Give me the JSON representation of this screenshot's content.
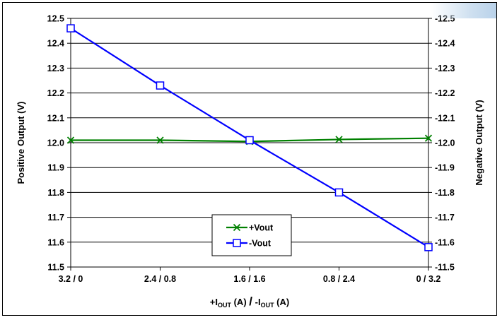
{
  "chart_data": {
    "type": "line",
    "categories": [
      "3.2 / 0",
      "2.4 / 0.8",
      "1.6 / 1.6",
      "0.8 / 2.4",
      "0 / 3.2"
    ],
    "series": [
      {
        "name": "+Vout",
        "axis": "left",
        "values": [
          12.01,
          12.01,
          12.005,
          12.013,
          12.018
        ],
        "color": "#008000",
        "marker": "x"
      },
      {
        "name": "-Vout",
        "axis": "right",
        "values": [
          -12.46,
          -12.23,
          -12.01,
          -11.8,
          -11.58
        ],
        "color": "#0000ff",
        "marker": "square"
      }
    ],
    "ylabel_left": "Positive Output (V)",
    "ylabel_right": "Negative Output (V)",
    "xlabel": {
      "main_1": "+I",
      "sub_1": "OUT",
      "unit_1": " (A) ",
      "slash": "/",
      "main_2": " -I",
      "sub_2": "OUT",
      "unit_2": " (A)"
    },
    "ylim_left": [
      11.5,
      12.5
    ],
    "ylim_right": [
      -11.5,
      -12.5
    ],
    "yticks_left": [
      "11.5",
      "11.6",
      "11.7",
      "11.8",
      "11.9",
      "12.0",
      "12.1",
      "12.2",
      "12.3",
      "12.4",
      "12.5"
    ],
    "yticks_right": [
      "-11.5",
      "-11.6",
      "-11.7",
      "-11.8",
      "-11.9",
      "-12.0",
      "-12.1",
      "-12.2",
      "-12.3",
      "-12.4",
      "-12.5"
    ],
    "grid": true,
    "legend_position": "bottom-center"
  }
}
